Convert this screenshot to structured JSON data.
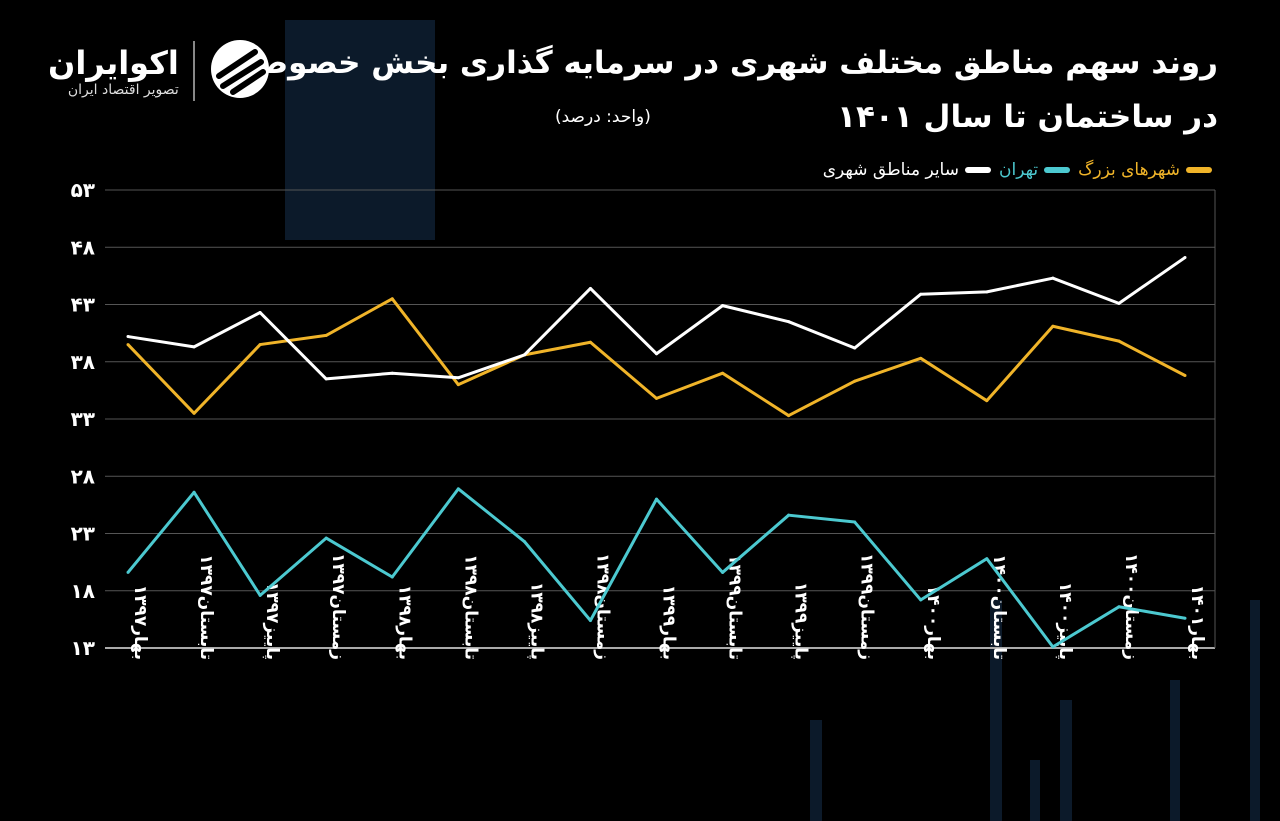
{
  "logo": {
    "name": "اکوایران",
    "tagline": "تصویر اقتصاد ایران"
  },
  "colors": {
    "background": "#000000",
    "large_cities": "#f0b429",
    "tehran": "#4cc9d0",
    "other_urban": "#ffffff",
    "grid": "#555555"
  },
  "chart_data": {
    "type": "line",
    "title": "روند سهم مناطق مختلف شهری در سرمایه گذاری بخش خصوصی در ساختمان تا سال ۱۴۰۱",
    "unit": "(واحد: درصد)",
    "categories": [
      "بهار۱۳۹۷",
      "تابستان۱۳۹۷",
      "پاییز۱۳۹۷",
      "زمستان۱۳۹۷",
      "بهار۱۳۹۸",
      "تابستان۱۳۹۸",
      "پاییز۱۳۹۸",
      "زمستان۱۳۹۸",
      "بهار۱۳۹۹",
      "تابستان۱۳۹۹",
      "پاییز۱۳۹۹",
      "زمستان۱۳۹۹",
      "بهار۱۴۰۰",
      "تابستان۱۴۰۰",
      "پاییز۱۴۰۰",
      "زمستان۱۴۰۰",
      "بهار۱۴۰۱"
    ],
    "ylim": [
      13,
      53
    ],
    "yticks": [
      "۱۳",
      "۱۸",
      "۲۳",
      "۲۸",
      "۳۳",
      "۳۸",
      "۴۳",
      "۴۸",
      "۵۳"
    ],
    "ytick_values": [
      13,
      18,
      23,
      28,
      33,
      38,
      43,
      48,
      53
    ],
    "grid": true,
    "legend_position": "top-right",
    "series": [
      {
        "name": "شهرهای بزرگ",
        "color": "#f0b429",
        "values": [
          39.5,
          33.5,
          39.5,
          40.3,
          43.5,
          36.0,
          38.6,
          39.7,
          34.8,
          37.0,
          33.3,
          36.3,
          38.3,
          34.6,
          41.1,
          39.8,
          36.8
        ]
      },
      {
        "name": "تهران",
        "color": "#4cc9d0",
        "values": [
          19.6,
          26.6,
          17.6,
          22.6,
          19.2,
          26.9,
          22.3,
          15.4,
          26.0,
          19.6,
          24.6,
          24.0,
          17.2,
          20.8,
          13.1,
          16.6,
          15.6
        ]
      },
      {
        "name": "سایر مناطق شهری",
        "color": "#ffffff",
        "values": [
          40.2,
          39.3,
          42.3,
          36.5,
          37.0,
          36.6,
          38.6,
          44.4,
          38.7,
          42.9,
          41.5,
          39.2,
          43.9,
          44.1,
          45.3,
          43.1,
          47.1
        ]
      }
    ]
  }
}
